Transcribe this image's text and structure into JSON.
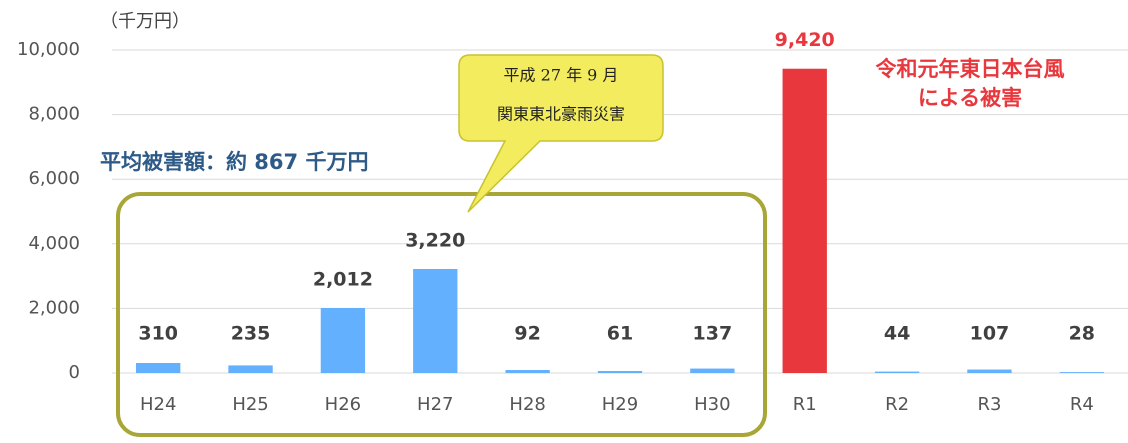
{
  "chart_data": {
    "type": "bar",
    "unit_label": "（千万円）",
    "categories": [
      "H24",
      "H25",
      "H26",
      "H27",
      "H28",
      "H29",
      "H30",
      "R1",
      "R2",
      "R3",
      "R4"
    ],
    "values": [
      310,
      235,
      2012,
      3220,
      92,
      61,
      137,
      9420,
      44,
      107,
      28
    ],
    "value_labels": [
      "310",
      "235",
      "2,012",
      "3,220",
      "92",
      "61",
      "137",
      "9,420",
      "44",
      "107",
      "28"
    ],
    "colors": [
      "#63b0ff",
      "#63b0ff",
      "#63b0ff",
      "#63b0ff",
      "#63b0ff",
      "#63b0ff",
      "#63b0ff",
      "#e8383d",
      "#63b0ff",
      "#63b0ff",
      "#63b0ff"
    ],
    "ylim": [
      0,
      10000
    ],
    "yticks": [
      0,
      {
        "value": 2000,
        "label": "2,000"
      },
      {
        "value": 4000,
        "label": "4,000"
      },
      {
        "value": 6000,
        "label": "6,000"
      },
      {
        "value": 8000,
        "label": "8,000"
      },
      {
        "value": 10000,
        "label": "10,000"
      }
    ],
    "grid": true,
    "annotations": {
      "average": "平均被害額：約 867 千万円",
      "callout": [
        "平成 27 年 9 月",
        "関東東北豪雨災害"
      ],
      "highlight": [
        "令和元年東日本台風",
        "による被害"
      ]
    }
  }
}
